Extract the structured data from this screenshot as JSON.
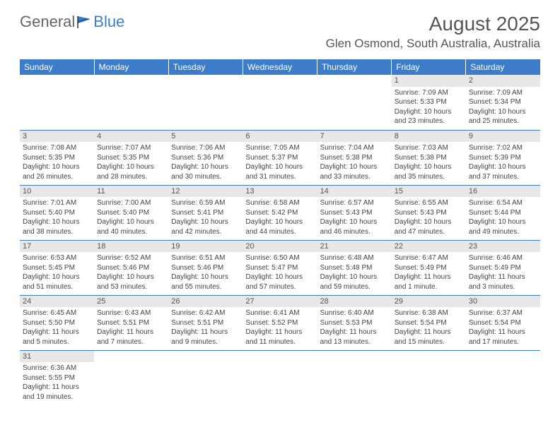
{
  "logo": {
    "text1": "General",
    "text2": "Blue"
  },
  "title": {
    "month": "August 2025",
    "location": "Glen Osmond, South Australia, Australia"
  },
  "colors": {
    "header_bg": "#3d7cc9",
    "daynum_bg": "#e7e7e7",
    "rule": "#3d7cc9"
  },
  "dayHeaders": [
    "Sunday",
    "Monday",
    "Tuesday",
    "Wednesday",
    "Thursday",
    "Friday",
    "Saturday"
  ],
  "weeks": [
    [
      {
        "n": "",
        "sr": "",
        "ss": "",
        "dl": ""
      },
      {
        "n": "",
        "sr": "",
        "ss": "",
        "dl": ""
      },
      {
        "n": "",
        "sr": "",
        "ss": "",
        "dl": ""
      },
      {
        "n": "",
        "sr": "",
        "ss": "",
        "dl": ""
      },
      {
        "n": "",
        "sr": "",
        "ss": "",
        "dl": ""
      },
      {
        "n": "1",
        "sr": "Sunrise: 7:09 AM",
        "ss": "Sunset: 5:33 PM",
        "dl": "Daylight: 10 hours and 23 minutes."
      },
      {
        "n": "2",
        "sr": "Sunrise: 7:09 AM",
        "ss": "Sunset: 5:34 PM",
        "dl": "Daylight: 10 hours and 25 minutes."
      }
    ],
    [
      {
        "n": "3",
        "sr": "Sunrise: 7:08 AM",
        "ss": "Sunset: 5:35 PM",
        "dl": "Daylight: 10 hours and 26 minutes."
      },
      {
        "n": "4",
        "sr": "Sunrise: 7:07 AM",
        "ss": "Sunset: 5:35 PM",
        "dl": "Daylight: 10 hours and 28 minutes."
      },
      {
        "n": "5",
        "sr": "Sunrise: 7:06 AM",
        "ss": "Sunset: 5:36 PM",
        "dl": "Daylight: 10 hours and 30 minutes."
      },
      {
        "n": "6",
        "sr": "Sunrise: 7:05 AM",
        "ss": "Sunset: 5:37 PM",
        "dl": "Daylight: 10 hours and 31 minutes."
      },
      {
        "n": "7",
        "sr": "Sunrise: 7:04 AM",
        "ss": "Sunset: 5:38 PM",
        "dl": "Daylight: 10 hours and 33 minutes."
      },
      {
        "n": "8",
        "sr": "Sunrise: 7:03 AM",
        "ss": "Sunset: 5:38 PM",
        "dl": "Daylight: 10 hours and 35 minutes."
      },
      {
        "n": "9",
        "sr": "Sunrise: 7:02 AM",
        "ss": "Sunset: 5:39 PM",
        "dl": "Daylight: 10 hours and 37 minutes."
      }
    ],
    [
      {
        "n": "10",
        "sr": "Sunrise: 7:01 AM",
        "ss": "Sunset: 5:40 PM",
        "dl": "Daylight: 10 hours and 38 minutes."
      },
      {
        "n": "11",
        "sr": "Sunrise: 7:00 AM",
        "ss": "Sunset: 5:40 PM",
        "dl": "Daylight: 10 hours and 40 minutes."
      },
      {
        "n": "12",
        "sr": "Sunrise: 6:59 AM",
        "ss": "Sunset: 5:41 PM",
        "dl": "Daylight: 10 hours and 42 minutes."
      },
      {
        "n": "13",
        "sr": "Sunrise: 6:58 AM",
        "ss": "Sunset: 5:42 PM",
        "dl": "Daylight: 10 hours and 44 minutes."
      },
      {
        "n": "14",
        "sr": "Sunrise: 6:57 AM",
        "ss": "Sunset: 5:43 PM",
        "dl": "Daylight: 10 hours and 46 minutes."
      },
      {
        "n": "15",
        "sr": "Sunrise: 6:55 AM",
        "ss": "Sunset: 5:43 PM",
        "dl": "Daylight: 10 hours and 47 minutes."
      },
      {
        "n": "16",
        "sr": "Sunrise: 6:54 AM",
        "ss": "Sunset: 5:44 PM",
        "dl": "Daylight: 10 hours and 49 minutes."
      }
    ],
    [
      {
        "n": "17",
        "sr": "Sunrise: 6:53 AM",
        "ss": "Sunset: 5:45 PM",
        "dl": "Daylight: 10 hours and 51 minutes."
      },
      {
        "n": "18",
        "sr": "Sunrise: 6:52 AM",
        "ss": "Sunset: 5:46 PM",
        "dl": "Daylight: 10 hours and 53 minutes."
      },
      {
        "n": "19",
        "sr": "Sunrise: 6:51 AM",
        "ss": "Sunset: 5:46 PM",
        "dl": "Daylight: 10 hours and 55 minutes."
      },
      {
        "n": "20",
        "sr": "Sunrise: 6:50 AM",
        "ss": "Sunset: 5:47 PM",
        "dl": "Daylight: 10 hours and 57 minutes."
      },
      {
        "n": "21",
        "sr": "Sunrise: 6:48 AM",
        "ss": "Sunset: 5:48 PM",
        "dl": "Daylight: 10 hours and 59 minutes."
      },
      {
        "n": "22",
        "sr": "Sunrise: 6:47 AM",
        "ss": "Sunset: 5:49 PM",
        "dl": "Daylight: 11 hours and 1 minute."
      },
      {
        "n": "23",
        "sr": "Sunrise: 6:46 AM",
        "ss": "Sunset: 5:49 PM",
        "dl": "Daylight: 11 hours and 3 minutes."
      }
    ],
    [
      {
        "n": "24",
        "sr": "Sunrise: 6:45 AM",
        "ss": "Sunset: 5:50 PM",
        "dl": "Daylight: 11 hours and 5 minutes."
      },
      {
        "n": "25",
        "sr": "Sunrise: 6:43 AM",
        "ss": "Sunset: 5:51 PM",
        "dl": "Daylight: 11 hours and 7 minutes."
      },
      {
        "n": "26",
        "sr": "Sunrise: 6:42 AM",
        "ss": "Sunset: 5:51 PM",
        "dl": "Daylight: 11 hours and 9 minutes."
      },
      {
        "n": "27",
        "sr": "Sunrise: 6:41 AM",
        "ss": "Sunset: 5:52 PM",
        "dl": "Daylight: 11 hours and 11 minutes."
      },
      {
        "n": "28",
        "sr": "Sunrise: 6:40 AM",
        "ss": "Sunset: 5:53 PM",
        "dl": "Daylight: 11 hours and 13 minutes."
      },
      {
        "n": "29",
        "sr": "Sunrise: 6:38 AM",
        "ss": "Sunset: 5:54 PM",
        "dl": "Daylight: 11 hours and 15 minutes."
      },
      {
        "n": "30",
        "sr": "Sunrise: 6:37 AM",
        "ss": "Sunset: 5:54 PM",
        "dl": "Daylight: 11 hours and 17 minutes."
      }
    ],
    [
      {
        "n": "31",
        "sr": "Sunrise: 6:36 AM",
        "ss": "Sunset: 5:55 PM",
        "dl": "Daylight: 11 hours and 19 minutes."
      },
      {
        "n": "",
        "sr": "",
        "ss": "",
        "dl": ""
      },
      {
        "n": "",
        "sr": "",
        "ss": "",
        "dl": ""
      },
      {
        "n": "",
        "sr": "",
        "ss": "",
        "dl": ""
      },
      {
        "n": "",
        "sr": "",
        "ss": "",
        "dl": ""
      },
      {
        "n": "",
        "sr": "",
        "ss": "",
        "dl": ""
      },
      {
        "n": "",
        "sr": "",
        "ss": "",
        "dl": ""
      }
    ]
  ]
}
